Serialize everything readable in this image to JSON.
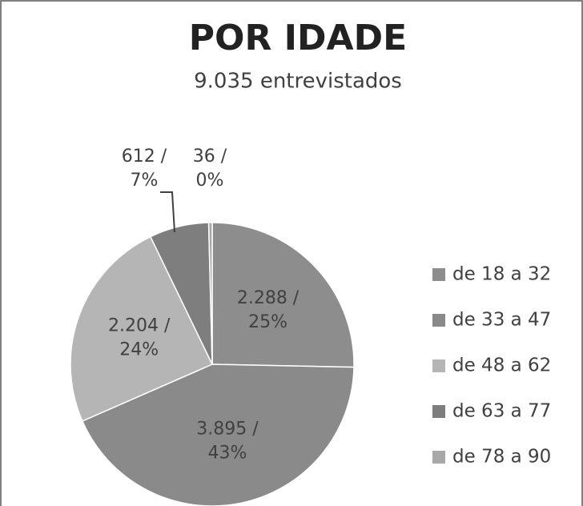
{
  "chart_data": {
    "type": "pie",
    "title": "POR IDADE",
    "subtitle": "9.035 entrevistados",
    "categories": [
      "de 18 a 32",
      "de 33 a 47",
      "de 48 a 62",
      "de 63 a 77",
      "de 78 a 90"
    ],
    "values": [
      2288,
      3895,
      2204,
      612,
      36
    ],
    "value_labels": [
      [
        "2.288 /",
        "25%"
      ],
      [
        "3.895 /",
        "43%"
      ],
      [
        "2.204 /",
        "24%"
      ],
      [
        "612 /",
        "7%"
      ],
      [
        "36 /",
        "0%"
      ]
    ],
    "colors": [
      "#8d8d8d",
      "#8a8a8a",
      "#b5b5b5",
      "#7e7e7e",
      "#a8a8a8"
    ],
    "legend": "right"
  }
}
